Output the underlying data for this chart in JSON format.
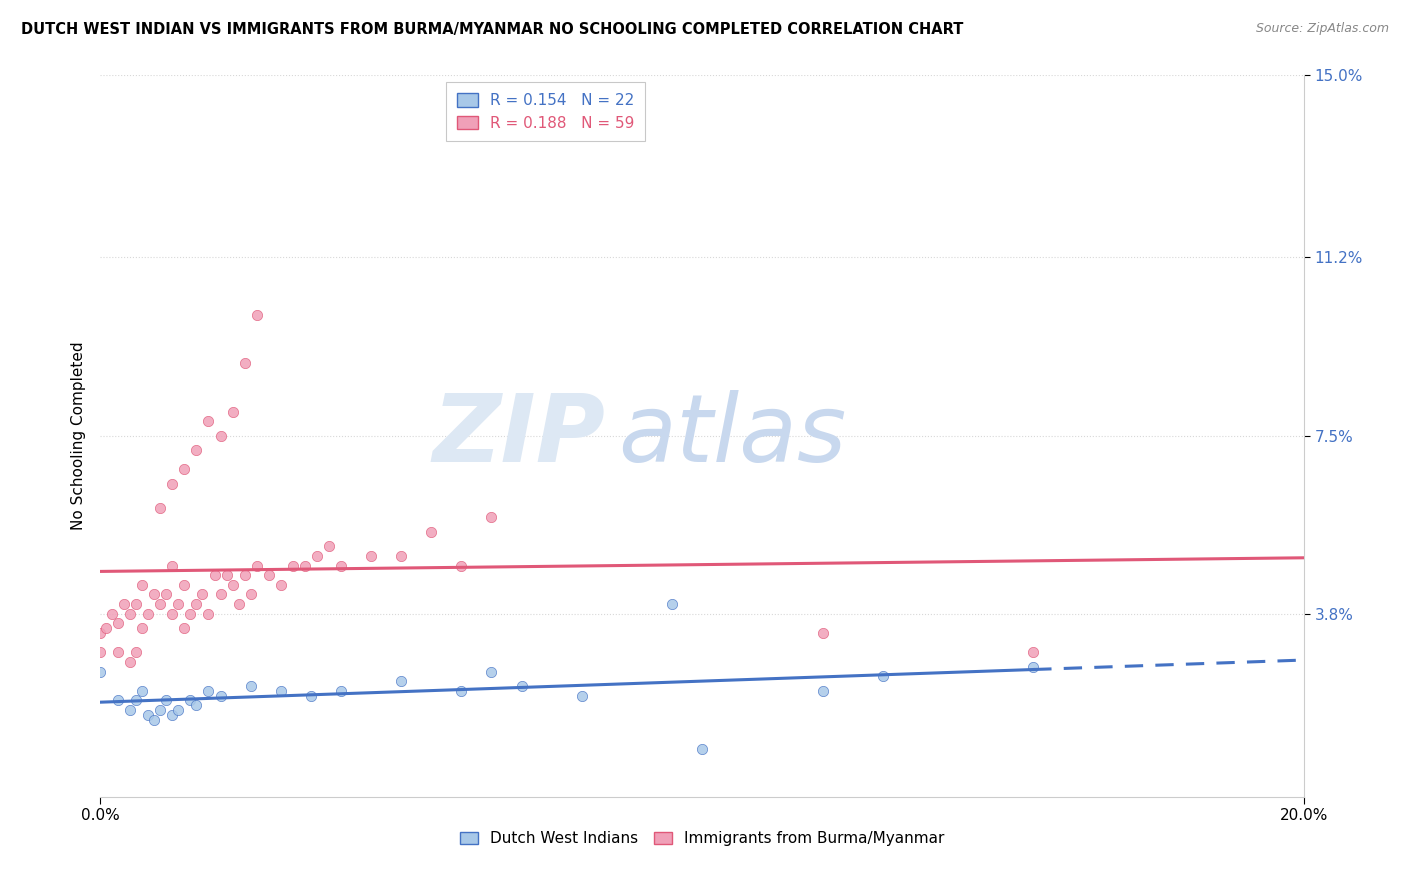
{
  "title": "DUTCH WEST INDIAN VS IMMIGRANTS FROM BURMA/MYANMAR NO SCHOOLING COMPLETED CORRELATION CHART",
  "source": "Source: ZipAtlas.com",
  "ylabel": "No Schooling Completed",
  "xlim": [
    0.0,
    0.2
  ],
  "ylim": [
    0.0,
    0.15
  ],
  "xtick_vals": [
    0.0,
    0.2
  ],
  "xtick_labels": [
    "0.0%",
    "20.0%"
  ],
  "ytick_positions": [
    0.038,
    0.075,
    0.112,
    0.15
  ],
  "ytick_labels": [
    "3.8%",
    "7.5%",
    "11.2%",
    "15.0%"
  ],
  "r_blue": 0.154,
  "n_blue": 22,
  "r_pink": 0.188,
  "n_pink": 59,
  "blue_scatter_color": "#a8c8e8",
  "pink_scatter_color": "#f0a0b8",
  "blue_line_color": "#4472c4",
  "pink_line_color": "#e05878",
  "legend_label_blue": "Dutch West Indians",
  "legend_label_pink": "Immigrants from Burma/Myanmar",
  "watermark_zip": "ZIP",
  "watermark_atlas": "atlas",
  "grid_color": "#d8d8d8",
  "blue_scatter_x": [
    0.0,
    0.003,
    0.005,
    0.006,
    0.007,
    0.008,
    0.009,
    0.01,
    0.011,
    0.012,
    0.013,
    0.015,
    0.016,
    0.018,
    0.02,
    0.025,
    0.03,
    0.035,
    0.04,
    0.05,
    0.06,
    0.065,
    0.07,
    0.08,
    0.095,
    0.1,
    0.12,
    0.13,
    0.155
  ],
  "blue_scatter_y": [
    0.026,
    0.02,
    0.018,
    0.02,
    0.022,
    0.017,
    0.016,
    0.018,
    0.02,
    0.017,
    0.018,
    0.02,
    0.019,
    0.022,
    0.021,
    0.023,
    0.022,
    0.021,
    0.022,
    0.024,
    0.022,
    0.026,
    0.023,
    0.021,
    0.04,
    0.01,
    0.022,
    0.025,
    0.027
  ],
  "pink_scatter_x": [
    0.0,
    0.0,
    0.001,
    0.002,
    0.003,
    0.003,
    0.004,
    0.005,
    0.005,
    0.006,
    0.006,
    0.007,
    0.007,
    0.008,
    0.009,
    0.01,
    0.011,
    0.012,
    0.012,
    0.013,
    0.014,
    0.014,
    0.015,
    0.016,
    0.017,
    0.018,
    0.019,
    0.02,
    0.021,
    0.022,
    0.023,
    0.024,
    0.025,
    0.026,
    0.028,
    0.03,
    0.032,
    0.034,
    0.036,
    0.038,
    0.04,
    0.045,
    0.05,
    0.055,
    0.06,
    0.065,
    0.12,
    0.155
  ],
  "pink_scatter_y": [
    0.03,
    0.034,
    0.035,
    0.038,
    0.03,
    0.036,
    0.04,
    0.028,
    0.038,
    0.03,
    0.04,
    0.035,
    0.044,
    0.038,
    0.042,
    0.04,
    0.042,
    0.038,
    0.048,
    0.04,
    0.035,
    0.044,
    0.038,
    0.04,
    0.042,
    0.038,
    0.046,
    0.042,
    0.046,
    0.044,
    0.04,
    0.046,
    0.042,
    0.048,
    0.046,
    0.044,
    0.048,
    0.048,
    0.05,
    0.052,
    0.048,
    0.05,
    0.05,
    0.055,
    0.048,
    0.058,
    0.034,
    0.03
  ],
  "pink_high_x": [
    0.01,
    0.012,
    0.014,
    0.016,
    0.018,
    0.02,
    0.022,
    0.024,
    0.026
  ],
  "pink_high_y": [
    0.06,
    0.065,
    0.068,
    0.072,
    0.078,
    0.075,
    0.08,
    0.09,
    0.1
  ]
}
